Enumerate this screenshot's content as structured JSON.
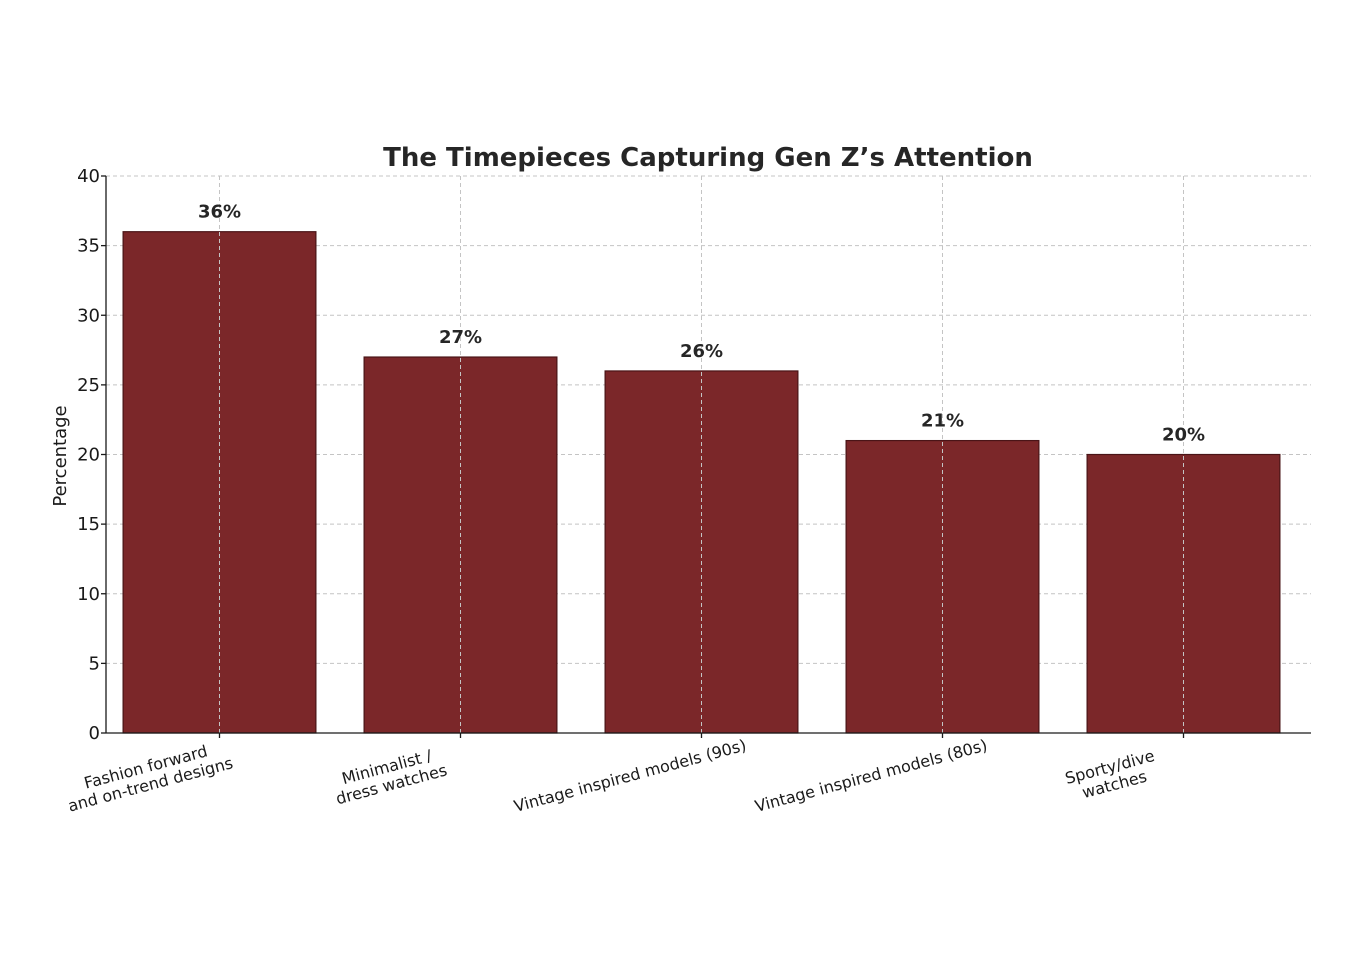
{
  "chart_data": {
    "type": "bar",
    "title": "The Timepieces Capturing Gen Z’s Attention",
    "xlabel": "",
    "ylabel": "Percentage",
    "ylim": [
      0,
      40
    ],
    "yticks": [
      0,
      5,
      10,
      15,
      20,
      25,
      30,
      35,
      40
    ],
    "grid": true,
    "bar_color": "#7b2729",
    "categories": [
      [
        "Fashion forward",
        "and on-trend designs"
      ],
      [
        "Minimalist /",
        "dress watches"
      ],
      [
        "Vintage inspired models (90s)"
      ],
      [
        "Vintage inspired models (80s)"
      ],
      [
        "Sporty/dive",
        "watches"
      ]
    ],
    "values": [
      36,
      27,
      26,
      21,
      20
    ],
    "value_labels": [
      "36%",
      "27%",
      "26%",
      "21%",
      "20%"
    ]
  }
}
